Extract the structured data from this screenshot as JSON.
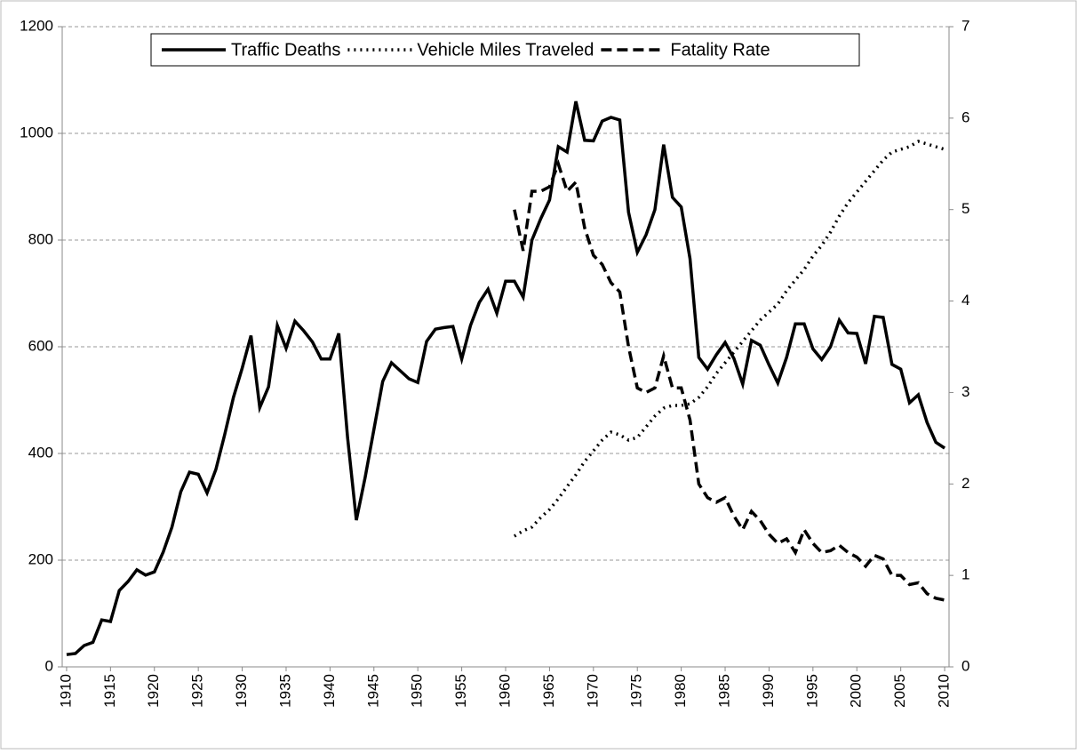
{
  "chart_data": {
    "type": "line",
    "x": [
      1910,
      1911,
      1912,
      1913,
      1914,
      1915,
      1916,
      1917,
      1918,
      1919,
      1920,
      1921,
      1922,
      1923,
      1924,
      1925,
      1926,
      1927,
      1928,
      1929,
      1930,
      1931,
      1932,
      1933,
      1934,
      1935,
      1936,
      1937,
      1938,
      1939,
      1940,
      1941,
      1942,
      1943,
      1944,
      1945,
      1946,
      1947,
      1948,
      1949,
      1950,
      1951,
      1952,
      1953,
      1954,
      1955,
      1956,
      1957,
      1958,
      1959,
      1960,
      1961,
      1962,
      1963,
      1964,
      1965,
      1966,
      1967,
      1968,
      1969,
      1970,
      1971,
      1972,
      1973,
      1974,
      1975,
      1976,
      1977,
      1978,
      1979,
      1980,
      1981,
      1982,
      1983,
      1984,
      1985,
      1986,
      1987,
      1988,
      1989,
      1990,
      1991,
      1992,
      1993,
      1994,
      1995,
      1996,
      1997,
      1998,
      1999,
      2000,
      2001,
      2002,
      2003,
      2004,
      2005,
      2006,
      2007,
      2008,
      2009,
      2010
    ],
    "series": [
      {
        "name": "Traffic Deaths",
        "color": "#000000",
        "dash": "solid",
        "axis": "y",
        "values": [
          23,
          25,
          40,
          46,
          88,
          85,
          143,
          160,
          182,
          172,
          178,
          215,
          262,
          328,
          365,
          361,
          326,
          370,
          435,
          505,
          560,
          621,
          486,
          525,
          640,
          597,
          648,
          630,
          609,
          577,
          577,
          625,
          430,
          275,
          355,
          445,
          535,
          570,
          555,
          540,
          533,
          610,
          633,
          636,
          638,
          577,
          640,
          683,
          708,
          663,
          723,
          723,
          693,
          800,
          840,
          875,
          975,
          965,
          1060,
          987,
          986,
          1023,
          1030,
          1025,
          852,
          777,
          810,
          857,
          979,
          880,
          862,
          765,
          580,
          558,
          585,
          608,
          578,
          530,
          612,
          603,
          566,
          532,
          580,
          643,
          643,
          596,
          576,
          600,
          650,
          626,
          625,
          568,
          657,
          655,
          567,
          558,
          495,
          510,
          458,
          421,
          410
        ]
      },
      {
        "name": "Vehicle Miles Traveled",
        "color": "#000000",
        "dash": "dotted",
        "axis": "y",
        "values": [
          null,
          null,
          null,
          null,
          null,
          null,
          null,
          null,
          null,
          null,
          null,
          null,
          null,
          null,
          null,
          null,
          null,
          null,
          null,
          null,
          null,
          null,
          null,
          null,
          null,
          null,
          null,
          null,
          null,
          null,
          null,
          null,
          null,
          null,
          null,
          null,
          null,
          null,
          null,
          null,
          null,
          null,
          null,
          null,
          null,
          null,
          null,
          null,
          null,
          null,
          null,
          245,
          255,
          262,
          280,
          295,
          315,
          338,
          360,
          385,
          405,
          425,
          440,
          435,
          425,
          430,
          450,
          470,
          485,
          490,
          490,
          493,
          505,
          525,
          550,
          570,
          590,
          610,
          630,
          650,
          665,
          680,
          705,
          725,
          745,
          770,
          790,
          815,
          845,
          870,
          890,
          910,
          930,
          950,
          965,
          970,
          975,
          985,
          980,
          975,
          970
        ]
      },
      {
        "name": "Fatality Rate",
        "color": "#000000",
        "dash": "dashed",
        "axis": "y2",
        "values": [
          null,
          null,
          null,
          null,
          null,
          null,
          null,
          null,
          null,
          null,
          null,
          null,
          null,
          null,
          null,
          null,
          null,
          null,
          null,
          null,
          null,
          null,
          null,
          null,
          null,
          null,
          null,
          null,
          null,
          null,
          null,
          null,
          null,
          null,
          null,
          null,
          null,
          null,
          null,
          null,
          null,
          null,
          null,
          null,
          null,
          null,
          null,
          null,
          null,
          null,
          null,
          5.0,
          4.55,
          5.2,
          5.2,
          5.25,
          5.5,
          5.2,
          5.3,
          4.8,
          4.5,
          4.4,
          4.2,
          4.1,
          3.5,
          3.05,
          3.0,
          3.05,
          3.4,
          3.05,
          3.05,
          2.7,
          2.0,
          1.85,
          1.8,
          1.85,
          1.65,
          1.5,
          1.7,
          1.6,
          1.45,
          1.35,
          1.4,
          1.25,
          1.5,
          1.35,
          1.25,
          1.27,
          1.33,
          1.25,
          1.2,
          1.1,
          1.22,
          1.18,
          1.0,
          1.0,
          0.9,
          0.92,
          0.8,
          0.75,
          0.73
        ]
      }
    ],
    "xlim": [
      1909.5,
      2010.5
    ],
    "xticks": [
      1910,
      1915,
      1920,
      1925,
      1930,
      1935,
      1940,
      1945,
      1950,
      1955,
      1960,
      1965,
      1970,
      1975,
      1980,
      1985,
      1990,
      1995,
      2000,
      2005,
      2010
    ],
    "ylim": [
      0,
      1200
    ],
    "yticks": [
      0,
      200,
      400,
      600,
      800,
      1000,
      1200
    ],
    "y2lim": [
      0,
      7
    ],
    "y2ticks": [
      0,
      1,
      2,
      3,
      4,
      5,
      6,
      7
    ],
    "grid": "y",
    "legend": "upper center"
  }
}
